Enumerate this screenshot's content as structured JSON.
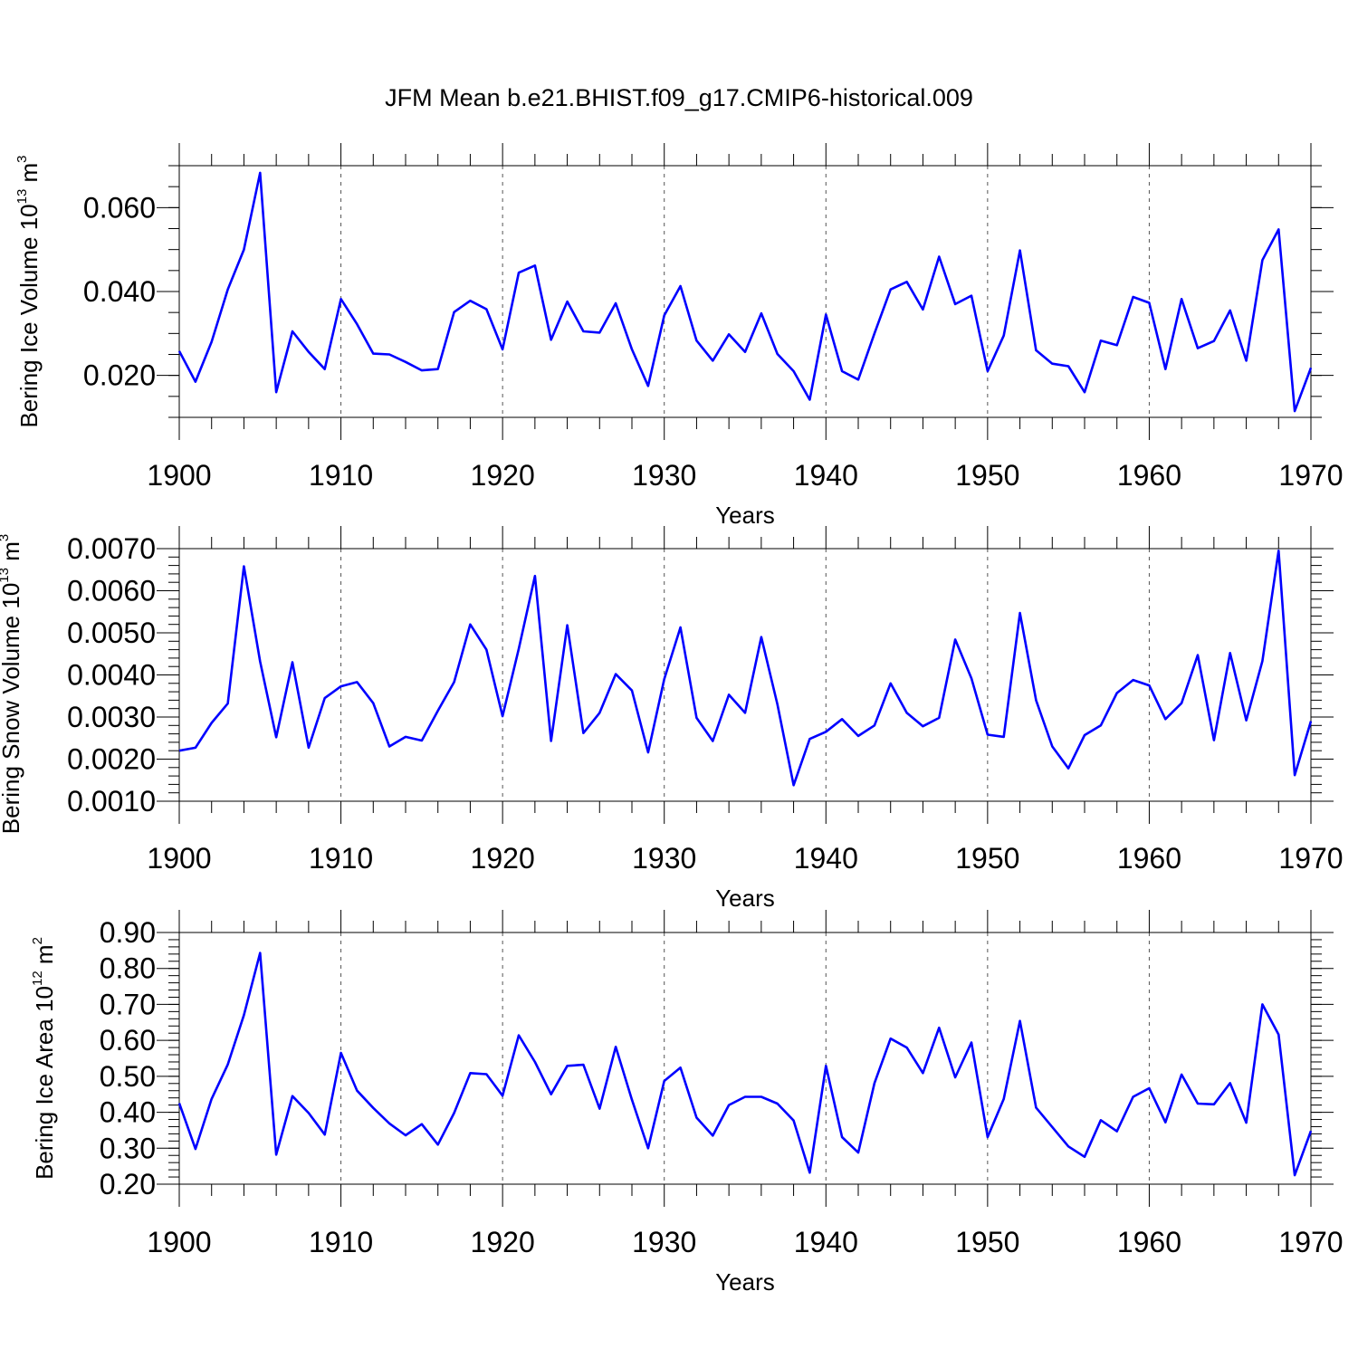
{
  "title": "JFM Mean b.e21.BHIST.f09_g17.CMIP6-historical.009",
  "colors": {
    "series": "#0000ff",
    "axis": "#000000",
    "grid": "#555555"
  },
  "chart_data": [
    {
      "type": "line",
      "ylabel_main": "Bering Ice Volume 10",
      "ylabel_exp": "13",
      "ylabel_unit": " m",
      "ylabel_unit_exp": "3",
      "xlabel": "Years",
      "xlim": [
        1900,
        1970
      ],
      "ylim": [
        0.01,
        0.07
      ],
      "yticks": [
        0.02,
        0.04,
        0.06
      ],
      "ytick_labels": [
        "0.020",
        "0.040",
        "0.060"
      ],
      "yminor_step": 0.005,
      "xticks": [
        1900,
        1910,
        1920,
        1930,
        1940,
        1950,
        1960,
        1970
      ],
      "xtick_labels": [
        "1900",
        "1910",
        "1920",
        "1930",
        "1940",
        "1950",
        "1960",
        "1970"
      ],
      "grid_x": [
        1910,
        1920,
        1930,
        1940,
        1950,
        1960
      ],
      "x": [
        1900,
        1901,
        1902,
        1903,
        1904,
        1905,
        1906,
        1907,
        1908,
        1909,
        1910,
        1911,
        1912,
        1913,
        1914,
        1915,
        1916,
        1917,
        1918,
        1919,
        1920,
        1921,
        1922,
        1923,
        1924,
        1925,
        1926,
        1927,
        1928,
        1929,
        1930,
        1931,
        1932,
        1933,
        1934,
        1935,
        1936,
        1937,
        1938,
        1939,
        1940,
        1941,
        1942,
        1943,
        1944,
        1945,
        1946,
        1947,
        1948,
        1949,
        1950,
        1951,
        1952,
        1953,
        1954,
        1955,
        1956,
        1957,
        1958,
        1959,
        1960,
        1961,
        1962,
        1963,
        1964,
        1965,
        1966,
        1967,
        1968,
        1969,
        1970
      ],
      "values": [
        0.0258,
        0.0185,
        0.028,
        0.0405,
        0.05,
        0.0683,
        0.016,
        0.0305,
        0.0256,
        0.0215,
        0.0382,
        0.0322,
        0.0252,
        0.025,
        0.0232,
        0.0212,
        0.0215,
        0.0351,
        0.0378,
        0.0358,
        0.0262,
        0.0445,
        0.0462,
        0.0285,
        0.0376,
        0.0305,
        0.0302,
        0.0372,
        0.0262,
        0.0175,
        0.0343,
        0.0413,
        0.0283,
        0.0235,
        0.0298,
        0.0256,
        0.0348,
        0.0251,
        0.021,
        0.0142,
        0.0345,
        0.021,
        0.019,
        0.03,
        0.0405,
        0.0423,
        0.0357,
        0.0483,
        0.037,
        0.039,
        0.021,
        0.0295,
        0.0498,
        0.026,
        0.0228,
        0.0222,
        0.016,
        0.0283,
        0.0272,
        0.0387,
        0.0373,
        0.0215,
        0.0382,
        0.0265,
        0.0282,
        0.0355,
        0.0235,
        0.0475,
        0.0548,
        0.0115,
        0.0218
      ]
    },
    {
      "type": "line",
      "ylabel_main": "Bering Snow Volume 10",
      "ylabel_exp": "13",
      "ylabel_unit": " m",
      "ylabel_unit_exp": "3",
      "xlabel": "Years",
      "xlim": [
        1900,
        1970
      ],
      "ylim": [
        0.001,
        0.007
      ],
      "yticks": [
        0.001,
        0.002,
        0.003,
        0.004,
        0.005,
        0.006,
        0.007
      ],
      "ytick_labels": [
        "0.0010",
        "0.0020",
        "0.0030",
        "0.0040",
        "0.0050",
        "0.0060",
        "0.0070"
      ],
      "yminor_step": 0.0002,
      "xticks": [
        1900,
        1910,
        1920,
        1930,
        1940,
        1950,
        1960,
        1970
      ],
      "xtick_labels": [
        "1900",
        "1910",
        "1920",
        "1930",
        "1940",
        "1950",
        "1960",
        "1970"
      ],
      "grid_x": [
        1910,
        1920,
        1930,
        1940,
        1950,
        1960
      ],
      "x": [
        1900,
        1901,
        1902,
        1903,
        1904,
        1905,
        1906,
        1907,
        1908,
        1909,
        1910,
        1911,
        1912,
        1913,
        1914,
        1915,
        1916,
        1917,
        1918,
        1919,
        1920,
        1921,
        1922,
        1923,
        1924,
        1925,
        1926,
        1927,
        1928,
        1929,
        1930,
        1931,
        1932,
        1933,
        1934,
        1935,
        1936,
        1937,
        1938,
        1939,
        1940,
        1941,
        1942,
        1943,
        1944,
        1945,
        1946,
        1947,
        1948,
        1949,
        1950,
        1951,
        1952,
        1953,
        1954,
        1955,
        1956,
        1957,
        1958,
        1959,
        1960,
        1961,
        1962,
        1963,
        1964,
        1965,
        1966,
        1967,
        1968,
        1969,
        1970
      ],
      "values": [
        0.0022,
        0.00227,
        0.00286,
        0.00332,
        0.00658,
        0.00432,
        0.00252,
        0.0043,
        0.00227,
        0.00345,
        0.00373,
        0.00383,
        0.00333,
        0.0023,
        0.00253,
        0.00244,
        0.00315,
        0.00383,
        0.0052,
        0.0046,
        0.00302,
        0.00462,
        0.00635,
        0.00243,
        0.00518,
        0.00262,
        0.0031,
        0.00402,
        0.00363,
        0.00216,
        0.0039,
        0.00513,
        0.00298,
        0.00243,
        0.00353,
        0.0031,
        0.0049,
        0.0033,
        0.00138,
        0.00248,
        0.00265,
        0.00295,
        0.00255,
        0.0028,
        0.0038,
        0.0031,
        0.00278,
        0.00298,
        0.00484,
        0.00392,
        0.00258,
        0.00253,
        0.00547,
        0.0034,
        0.0023,
        0.00178,
        0.00257,
        0.0028,
        0.00357,
        0.00388,
        0.00375,
        0.00295,
        0.00333,
        0.00447,
        0.00245,
        0.00452,
        0.00292,
        0.00433,
        0.00695,
        0.00162,
        0.0029
      ]
    },
    {
      "type": "line",
      "ylabel_main": "Bering Ice Area 10",
      "ylabel_exp": "12",
      "ylabel_unit": " m",
      "ylabel_unit_exp": "2",
      "xlabel": "Years",
      "xlim": [
        1900,
        1970
      ],
      "ylim": [
        0.2,
        0.9
      ],
      "yticks": [
        0.2,
        0.3,
        0.4,
        0.5,
        0.6,
        0.7,
        0.8,
        0.9
      ],
      "ytick_labels": [
        "0.20",
        "0.30",
        "0.40",
        "0.50",
        "0.60",
        "0.70",
        "0.80",
        "0.90"
      ],
      "yminor_step": 0.02,
      "xticks": [
        1900,
        1910,
        1920,
        1930,
        1940,
        1950,
        1960,
        1970
      ],
      "xtick_labels": [
        "1900",
        "1910",
        "1920",
        "1930",
        "1940",
        "1950",
        "1960",
        "1970"
      ],
      "grid_x": [
        1910,
        1920,
        1930,
        1940,
        1950,
        1960
      ],
      "x": [
        1900,
        1901,
        1902,
        1903,
        1904,
        1905,
        1906,
        1907,
        1908,
        1909,
        1910,
        1911,
        1912,
        1913,
        1914,
        1915,
        1916,
        1917,
        1918,
        1919,
        1920,
        1921,
        1922,
        1923,
        1924,
        1925,
        1926,
        1927,
        1928,
        1929,
        1930,
        1931,
        1932,
        1933,
        1934,
        1935,
        1936,
        1937,
        1938,
        1939,
        1940,
        1941,
        1942,
        1943,
        1944,
        1945,
        1946,
        1947,
        1948,
        1949,
        1950,
        1951,
        1952,
        1953,
        1954,
        1955,
        1956,
        1957,
        1958,
        1959,
        1960,
        1961,
        1962,
        1963,
        1964,
        1965,
        1966,
        1967,
        1968,
        1969,
        1970
      ],
      "values": [
        0.425,
        0.298,
        0.437,
        0.533,
        0.67,
        0.843,
        0.282,
        0.445,
        0.398,
        0.338,
        0.565,
        0.46,
        0.412,
        0.369,
        0.336,
        0.367,
        0.31,
        0.398,
        0.509,
        0.506,
        0.446,
        0.614,
        0.54,
        0.45,
        0.529,
        0.532,
        0.41,
        0.582,
        0.435,
        0.3,
        0.487,
        0.524,
        0.385,
        0.335,
        0.42,
        0.443,
        0.443,
        0.424,
        0.377,
        0.232,
        0.529,
        0.331,
        0.288,
        0.481,
        0.605,
        0.58,
        0.509,
        0.635,
        0.497,
        0.594,
        0.331,
        0.437,
        0.654,
        0.413,
        0.359,
        0.305,
        0.276,
        0.378,
        0.347,
        0.443,
        0.467,
        0.372,
        0.505,
        0.424,
        0.422,
        0.481,
        0.371,
        0.7,
        0.616,
        0.225,
        0.348
      ]
    }
  ]
}
